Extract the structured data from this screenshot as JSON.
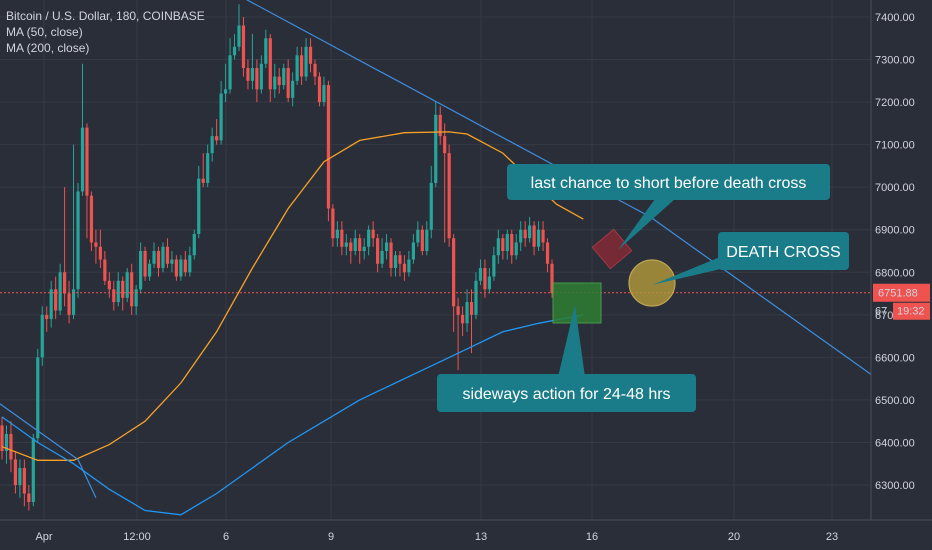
{
  "legend": {
    "symbol": "Bitcoin / U.S. Dollar, 180, COINBASE",
    "ma1": "MA (50, close)",
    "ma2": "MA (200, close)"
  },
  "price_label": {
    "value": "6751.88",
    "countdown": "19:32",
    "value_partial": "67"
  },
  "colors": {
    "background": "#2a2e39",
    "up": "#26a69a",
    "down": "#ef5350",
    "ma50": "#f7a128",
    "ma200": "#2196f3",
    "trendline": "#3d8fe0",
    "callout": "#1b7c89",
    "price_tag": "#ef5350"
  },
  "callouts": {
    "short": "last chance to short before death cross",
    "death": "DEATH CROSS",
    "sideways": "sideways action for 24-48 hrs"
  },
  "chart_data": {
    "type": "candlestick",
    "title": "Bitcoin / U.S. Dollar, 180, COINBASE",
    "yticks": [
      7400,
      7300,
      7200,
      7100,
      7000,
      6900,
      6800,
      6700,
      6600,
      6500,
      6400,
      6300
    ],
    "ytick_labels": [
      "7400.00",
      "7300.00",
      "7200.00",
      "7100.00",
      "7000.00",
      "6900.00",
      "6800.00",
      "6700.00",
      "6600.00",
      "6500.00",
      "6400.00",
      "6300.00"
    ],
    "ylim": [
      6230,
      7430
    ],
    "xticks": [
      "Apr",
      "12:00",
      "6",
      "9",
      "13",
      "16",
      "20",
      "23"
    ],
    "current_price": 6751.88,
    "ma50": [
      [
        0,
        6390
      ],
      [
        8,
        6358
      ],
      [
        16,
        6358
      ],
      [
        24,
        6395
      ],
      [
        32,
        6450
      ],
      [
        40,
        6540
      ],
      [
        48,
        6660
      ],
      [
        56,
        6810
      ],
      [
        64,
        6950
      ],
      [
        72,
        7060
      ],
      [
        80,
        7110
      ],
      [
        90,
        7128
      ],
      [
        100,
        7130
      ],
      [
        104,
        7125
      ],
      [
        112,
        7080
      ],
      [
        118,
        7020
      ],
      [
        124,
        6960
      ],
      [
        130,
        6925
      ]
    ],
    "ma200": [
      [
        0,
        6460
      ],
      [
        8,
        6400
      ],
      [
        16,
        6350
      ],
      [
        24,
        6290
      ],
      [
        32,
        6240
      ],
      [
        40,
        6230
      ],
      [
        48,
        6280
      ],
      [
        56,
        6340
      ],
      [
        64,
        6400
      ],
      [
        72,
        6450
      ],
      [
        80,
        6500
      ],
      [
        88,
        6540
      ],
      [
        96,
        6580
      ],
      [
        104,
        6620
      ],
      [
        112,
        6660
      ],
      [
        120,
        6680
      ],
      [
        130,
        6700
      ]
    ],
    "trendline": [
      [
        -3,
        6510
      ],
      [
        17,
        6360
      ],
      [
        21,
        6270
      ]
    ],
    "trendline2": [
      [
        46,
        7490
      ],
      [
        145,
        6930
      ],
      [
        205,
        6480
      ]
    ],
    "candles": [
      [
        6440,
        6380,
        6460,
        6360
      ],
      [
        6380,
        6420,
        6440,
        6350
      ],
      [
        6420,
        6360,
        6450,
        6330
      ],
      [
        6360,
        6300,
        6380,
        6280
      ],
      [
        6300,
        6340,
        6360,
        6270
      ],
      [
        6340,
        6280,
        6360,
        6250
      ],
      [
        6280,
        6260,
        6300,
        6240
      ],
      [
        6260,
        6410,
        6420,
        6250
      ],
      [
        6410,
        6600,
        6620,
        6400
      ],
      [
        6600,
        6700,
        6720,
        6580
      ],
      [
        6700,
        6690,
        6720,
        6660
      ],
      [
        6690,
        6760,
        6780,
        6670
      ],
      [
        6760,
        6710,
        6790,
        6690
      ],
      [
        6710,
        6800,
        6820,
        6700
      ],
      [
        6800,
        6750,
        7000,
        6720
      ],
      [
        6750,
        6700,
        6780,
        6680
      ],
      [
        6700,
        6760,
        7100,
        6690
      ],
      [
        6760,
        6990,
        7010,
        6740
      ],
      [
        6990,
        7140,
        7290,
        6980
      ],
      [
        7140,
        6980,
        7150,
        6880
      ],
      [
        6980,
        6870,
        6990,
        6850
      ],
      [
        6870,
        6860,
        6900,
        6820
      ],
      [
        6860,
        6830,
        6900,
        6810
      ],
      [
        6830,
        6780,
        6850,
        6770
      ],
      [
        6780,
        6760,
        6800,
        6740
      ],
      [
        6760,
        6730,
        6780,
        6710
      ],
      [
        6730,
        6780,
        6800,
        6720
      ],
      [
        6780,
        6740,
        6790,
        6710
      ],
      [
        6740,
        6800,
        6810,
        6730
      ],
      [
        6800,
        6720,
        6820,
        6700
      ],
      [
        6720,
        6760,
        6770,
        6700
      ],
      [
        6760,
        6850,
        6870,
        6750
      ],
      [
        6850,
        6790,
        6860,
        6780
      ],
      [
        6790,
        6820,
        6830,
        6780
      ],
      [
        6820,
        6850,
        6870,
        6810
      ],
      [
        6850,
        6810,
        6860,
        6790
      ],
      [
        6810,
        6860,
        6870,
        6800
      ],
      [
        6860,
        6820,
        6880,
        6810
      ],
      [
        6820,
        6830,
        6850,
        6800
      ],
      [
        6830,
        6790,
        6840,
        6780
      ],
      [
        6790,
        6830,
        6840,
        6780
      ],
      [
        6830,
        6800,
        6850,
        6790
      ],
      [
        6800,
        6840,
        6860,
        6790
      ],
      [
        6840,
        6890,
        6900,
        6830
      ],
      [
        6890,
        7020,
        7050,
        6880
      ],
      [
        7020,
        7010,
        7080,
        7000
      ],
      [
        7010,
        7080,
        7100,
        7000
      ],
      [
        7080,
        7120,
        7140,
        7060
      ],
      [
        7120,
        7110,
        7160,
        7100
      ],
      [
        7110,
        7220,
        7250,
        7100
      ],
      [
        7220,
        7230,
        7290,
        7200
      ],
      [
        7230,
        7310,
        7350,
        7220
      ],
      [
        7310,
        7330,
        7360,
        7300
      ],
      [
        7330,
        7380,
        7430,
        7320
      ],
      [
        7380,
        7280,
        7400,
        7260
      ],
      [
        7280,
        7250,
        7300,
        7230
      ],
      [
        7250,
        7280,
        7360,
        7230
      ],
      [
        7280,
        7230,
        7300,
        7200
      ],
      [
        7230,
        7290,
        7310,
        7220
      ],
      [
        7290,
        7350,
        7370,
        7280
      ],
      [
        7350,
        7230,
        7360,
        7200
      ],
      [
        7230,
        7260,
        7290,
        7210
      ],
      [
        7260,
        7240,
        7280,
        7220
      ],
      [
        7240,
        7280,
        7290,
        7230
      ],
      [
        7280,
        7210,
        7300,
        7200
      ],
      [
        7210,
        7250,
        7270,
        7190
      ],
      [
        7250,
        7310,
        7330,
        7240
      ],
      [
        7310,
        7260,
        7330,
        7240
      ],
      [
        7260,
        7330,
        7350,
        7250
      ],
      [
        7330,
        7290,
        7350,
        7270
      ],
      [
        7290,
        7260,
        7300,
        7240
      ],
      [
        7260,
        7200,
        7270,
        7190
      ],
      [
        7200,
        7240,
        7260,
        7190
      ],
      [
        7240,
        6950,
        7250,
        6920
      ],
      [
        6950,
        6880,
        6960,
        6860
      ],
      [
        6880,
        6900,
        6920,
        6860
      ],
      [
        6900,
        6860,
        6920,
        6840
      ],
      [
        6860,
        6870,
        6890,
        6840
      ],
      [
        6870,
        6850,
        6880,
        6820
      ],
      [
        6850,
        6880,
        6900,
        6840
      ],
      [
        6880,
        6850,
        6890,
        6820
      ],
      [
        6850,
        6860,
        6880,
        6830
      ],
      [
        6860,
        6900,
        6910,
        6840
      ],
      [
        6900,
        6880,
        6920,
        6860
      ],
      [
        6880,
        6820,
        6890,
        6800
      ],
      [
        6820,
        6850,
        6880,
        6810
      ],
      [
        6850,
        6870,
        6890,
        6830
      ],
      [
        6870,
        6810,
        6880,
        6790
      ],
      [
        6810,
        6840,
        6850,
        6790
      ],
      [
        6840,
        6820,
        6850,
        6790
      ],
      [
        6820,
        6800,
        6840,
        6780
      ],
      [
        6800,
        6830,
        6850,
        6790
      ],
      [
        6830,
        6870,
        6890,
        6820
      ],
      [
        6870,
        6900,
        6920,
        6860
      ],
      [
        6900,
        6850,
        6910,
        6840
      ],
      [
        6850,
        6900,
        6920,
        6840
      ],
      [
        6900,
        7010,
        7050,
        6880
      ],
      [
        7010,
        7170,
        7200,
        7000
      ],
      [
        7170,
        7120,
        7190,
        7100
      ],
      [
        7120,
        7080,
        7150,
        6870
      ],
      [
        7080,
        6880,
        7100,
        6860
      ],
      [
        6880,
        6720,
        6890,
        6660
      ],
      [
        6720,
        6700,
        6740,
        6570
      ],
      [
        6700,
        6680,
        6720,
        6650
      ],
      [
        6680,
        6730,
        6760,
        6660
      ],
      [
        6730,
        6700,
        6760,
        6610
      ],
      [
        6700,
        6780,
        6800,
        6690
      ],
      [
        6780,
        6810,
        6830,
        6770
      ],
      [
        6810,
        6760,
        6830,
        6740
      ],
      [
        6760,
        6790,
        6810,
        6750
      ],
      [
        6790,
        6840,
        6860,
        6780
      ],
      [
        6840,
        6880,
        6900,
        6820
      ],
      [
        6880,
        6850,
        6890,
        6830
      ],
      [
        6850,
        6890,
        6900,
        6830
      ],
      [
        6890,
        6840,
        6900,
        6820
      ],
      [
        6840,
        6870,
        6890,
        6830
      ],
      [
        6870,
        6900,
        6920,
        6850
      ],
      [
        6900,
        6880,
        6920,
        6860
      ],
      [
        6880,
        6910,
        6930,
        6870
      ],
      [
        6910,
        6860,
        6920,
        6840
      ],
      [
        6860,
        6900,
        6920,
        6850
      ],
      [
        6900,
        6870,
        6920,
        6850
      ],
      [
        6870,
        6820,
        6880,
        6800
      ],
      [
        6820,
        6751,
        6830,
        6740
      ]
    ]
  }
}
